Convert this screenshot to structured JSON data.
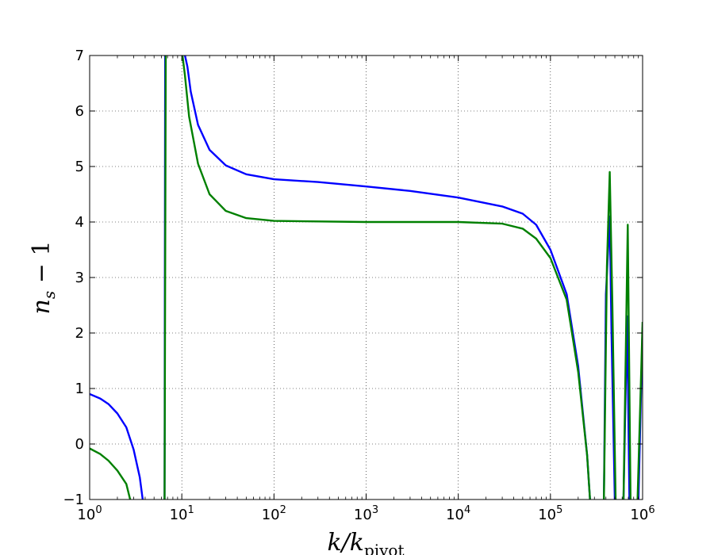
{
  "chart_data": {
    "type": "line",
    "xscale": "log",
    "xlim": [
      1,
      1000000
    ],
    "ylim": [
      -1,
      7
    ],
    "grid": true,
    "xlabel": "k/k_pivot",
    "ylabel": "n_s − 1",
    "xticks": [
      {
        "value": 1,
        "base": "10",
        "exp": "0"
      },
      {
        "value": 10,
        "base": "10",
        "exp": "1"
      },
      {
        "value": 100,
        "base": "10",
        "exp": "2"
      },
      {
        "value": 1000,
        "base": "10",
        "exp": "3"
      },
      {
        "value": 10000,
        "base": "10",
        "exp": "4"
      },
      {
        "value": 100000,
        "base": "10",
        "exp": "5"
      },
      {
        "value": 1000000,
        "base": "10",
        "exp": "6"
      }
    ],
    "yticks": [
      {
        "value": -1,
        "label": "−1"
      },
      {
        "value": 0,
        "label": "0"
      },
      {
        "value": 1,
        "label": "1"
      },
      {
        "value": 2,
        "label": "2"
      },
      {
        "value": 3,
        "label": "3"
      },
      {
        "value": 4,
        "label": "4"
      },
      {
        "value": 5,
        "label": "5"
      },
      {
        "value": 6,
        "label": "6"
      },
      {
        "value": 7,
        "label": "7"
      }
    ],
    "series": [
      {
        "color": "#0000ff",
        "points": [
          [
            1,
            0.9
          ],
          [
            1.3,
            0.82
          ],
          [
            1.6,
            0.72
          ],
          [
            2.0,
            0.55
          ],
          [
            2.5,
            0.3
          ],
          [
            3.0,
            -0.1
          ],
          [
            3.5,
            -0.6
          ],
          [
            3.8,
            -1.05
          ],
          [
            6.5,
            -1.05
          ],
          [
            6.6,
            7.1
          ],
          [
            10.5,
            7.1
          ],
          [
            11.5,
            6.8
          ],
          [
            12.5,
            6.35
          ],
          [
            15,
            5.75
          ],
          [
            20,
            5.3
          ],
          [
            30,
            5.02
          ],
          [
            50,
            4.86
          ],
          [
            100,
            4.77
          ],
          [
            300,
            4.72
          ],
          [
            1000,
            4.64
          ],
          [
            3000,
            4.56
          ],
          [
            10000,
            4.44
          ],
          [
            30000,
            4.28
          ],
          [
            50000,
            4.15
          ],
          [
            70000,
            3.95
          ],
          [
            100000,
            3.5
          ],
          [
            150000,
            2.7
          ],
          [
            200000,
            1.4
          ],
          [
            250000,
            -0.2
          ],
          [
            270000,
            -1.05
          ],
          [
            380000,
            -1.05
          ],
          [
            400000,
            2.7
          ],
          [
            440000,
            4.1
          ],
          [
            460000,
            2.0
          ],
          [
            500000,
            -1.05
          ],
          [
            620000,
            -1.05
          ],
          [
            680000,
            2.3
          ],
          [
            720000,
            -1.05
          ],
          [
            900000,
            -1.05
          ],
          [
            1000000,
            2.1
          ]
        ]
      },
      {
        "color": "#008000",
        "points": [
          [
            1,
            -0.08
          ],
          [
            1.3,
            -0.18
          ],
          [
            1.6,
            -0.3
          ],
          [
            2.0,
            -0.48
          ],
          [
            2.5,
            -0.72
          ],
          [
            2.8,
            -1.05
          ],
          [
            6.5,
            -1.05
          ],
          [
            6.7,
            7.1
          ],
          [
            10.0,
            7.1
          ],
          [
            10.8,
            6.65
          ],
          [
            12,
            5.9
          ],
          [
            15,
            5.05
          ],
          [
            20,
            4.5
          ],
          [
            30,
            4.2
          ],
          [
            50,
            4.07
          ],
          [
            100,
            4.02
          ],
          [
            1000,
            4.0
          ],
          [
            10000,
            4.0
          ],
          [
            30000,
            3.97
          ],
          [
            50000,
            3.88
          ],
          [
            70000,
            3.7
          ],
          [
            100000,
            3.35
          ],
          [
            150000,
            2.6
          ],
          [
            200000,
            1.3
          ],
          [
            250000,
            -0.2
          ],
          [
            270000,
            -1.05
          ],
          [
            380000,
            -1.05
          ],
          [
            410000,
            3.2
          ],
          [
            440000,
            4.9
          ],
          [
            470000,
            2.5
          ],
          [
            510000,
            -1.05
          ],
          [
            620000,
            -1.05
          ],
          [
            690000,
            3.95
          ],
          [
            740000,
            -1.05
          ],
          [
            880000,
            -1.05
          ],
          [
            1000000,
            2.2
          ]
        ]
      }
    ]
  }
}
